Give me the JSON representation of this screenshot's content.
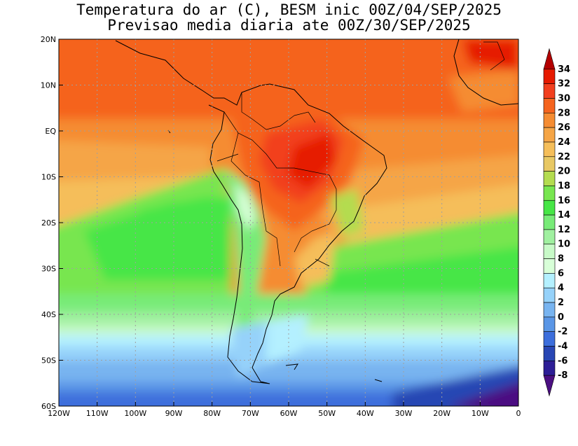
{
  "title": {
    "line1": "Temperatura do ar (C), BESM inic 00Z/04/SEP/2025",
    "line2": "Previsao media diaria ate 00Z/30/SEP/2025"
  },
  "map": {
    "lon_ticks": [
      "120W",
      "110W",
      "100W",
      "90W",
      "80W",
      "70W",
      "60W",
      "50W",
      "40W",
      "30W",
      "20W",
      "10W",
      "0"
    ],
    "lat_ticks": [
      "20N",
      "10N",
      "EQ",
      "10S",
      "20S",
      "30S",
      "40S",
      "50S",
      "60S"
    ],
    "lon_range": [
      -120,
      0
    ],
    "lat_range": [
      -60,
      20
    ]
  },
  "colorbar": {
    "labels": [
      "34",
      "32",
      "30",
      "28",
      "26",
      "24",
      "22",
      "20",
      "18",
      "16",
      "14",
      "12",
      "10",
      "8",
      "6",
      "4",
      "2",
      "0",
      "-2",
      "-4",
      "-6",
      "-8"
    ],
    "colors": [
      "#b40000",
      "#e61a00",
      "#f23f1e",
      "#f5641e",
      "#f58c32",
      "#f5a546",
      "#f5be5a",
      "#e8c864",
      "#b4dc50",
      "#78e650",
      "#46e646",
      "#78eb78",
      "#a0f0a0",
      "#c8fac8",
      "#d8ffd8",
      "#b4f0ff",
      "#96d2fa",
      "#78b4f0",
      "#5a96e6",
      "#3c6edc",
      "#2846b4",
      "#2d1e96",
      "#4b0f82"
    ]
  }
}
